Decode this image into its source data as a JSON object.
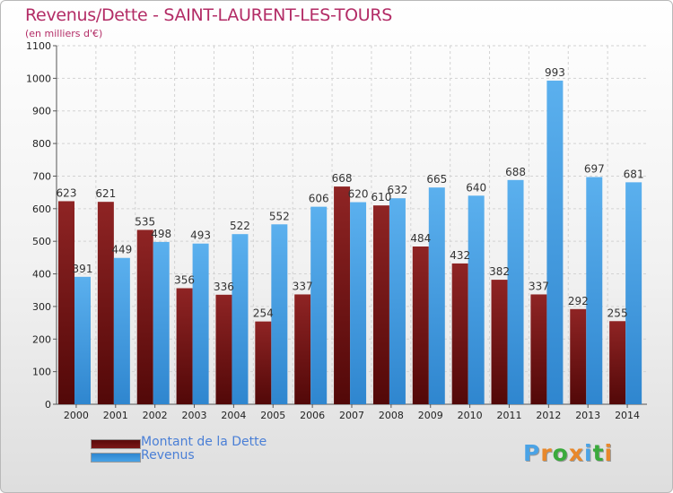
{
  "colors": {
    "dette": "#7a1616",
    "revenus": "#4aa3e6",
    "title": "#b32c66",
    "legend_text": "#4a7fd6"
  },
  "logo": {
    "text": "Proxiti",
    "letter_colors": [
      "#4aa3e6",
      "#e8882b",
      "#3aaa3c",
      "#e8882b",
      "#4aa3e6",
      "#3aaa3c",
      "#e8882b"
    ]
  },
  "chart_data": {
    "type": "bar",
    "title": "Revenus/Dette - SAINT-LAURENT-LES-TOURS",
    "subtitle": "(en milliers d'€)",
    "xlabel": "",
    "ylabel": "",
    "categories": [
      "2000",
      "2001",
      "2002",
      "2003",
      "2004",
      "2005",
      "2006",
      "2007",
      "2008",
      "2009",
      "2010",
      "2011",
      "2012",
      "2013",
      "2014"
    ],
    "series": [
      {
        "name": "Montant de la Dette",
        "values": [
          623,
          621,
          535,
          356,
          336,
          254,
          337,
          668,
          610,
          484,
          432,
          382,
          337,
          292,
          255
        ]
      },
      {
        "name": "Revenus",
        "values": [
          391,
          449,
          498,
          493,
          522,
          552,
          606,
          620,
          632,
          665,
          640,
          688,
          993,
          697,
          681
        ]
      }
    ],
    "ylim": [
      0,
      1100
    ],
    "yticks": [
      0,
      100,
      200,
      300,
      400,
      500,
      600,
      700,
      800,
      900,
      1000,
      1100
    ],
    "grid": true,
    "legend_position": "bottom-left"
  }
}
